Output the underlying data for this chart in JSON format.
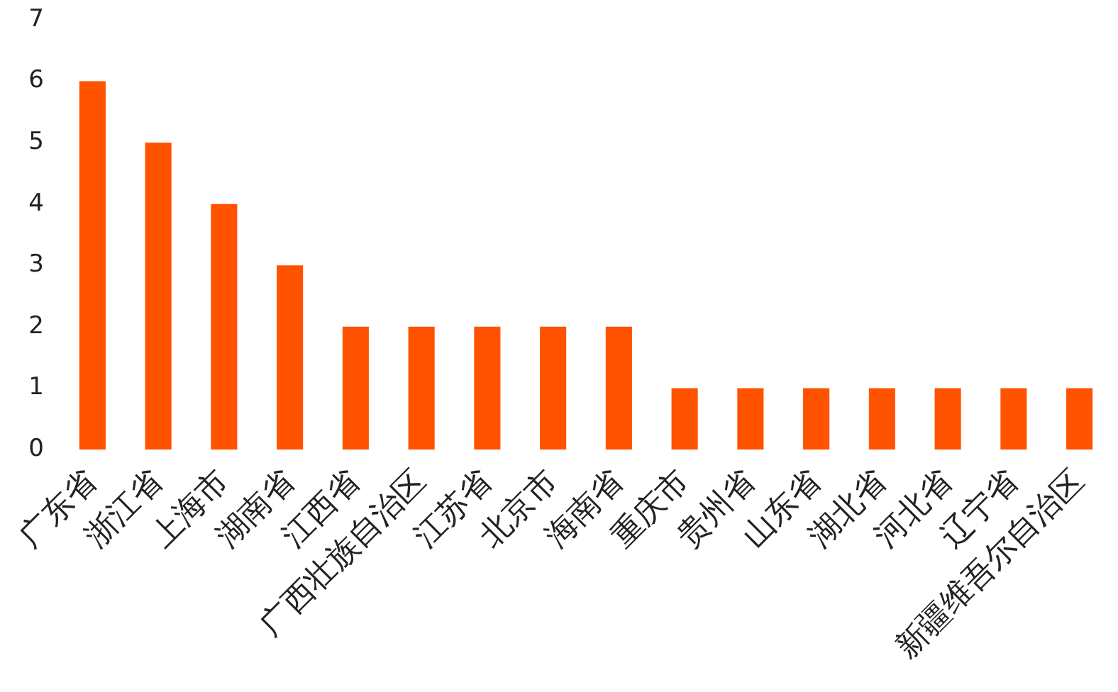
{
  "chart_data": {
    "type": "bar",
    "categories": [
      "广东省",
      "浙江省",
      "上海市",
      "湖南省",
      "江西省",
      "广西壮族自治区",
      "江苏省",
      "北京市",
      "海南省",
      "重庆市",
      "贵州省",
      "山东省",
      "湖北省",
      "河北省",
      "辽宁省",
      "新疆维吾尔自治区"
    ],
    "values": [
      6,
      5,
      4,
      3,
      2,
      2,
      2,
      2,
      2,
      1,
      1,
      1,
      1,
      1,
      1,
      1
    ],
    "color": "#ff5300",
    "ylim": [
      0,
      7
    ],
    "yticks": [
      0,
      1,
      2,
      3,
      4,
      5,
      6,
      7
    ],
    "grid": false
  }
}
